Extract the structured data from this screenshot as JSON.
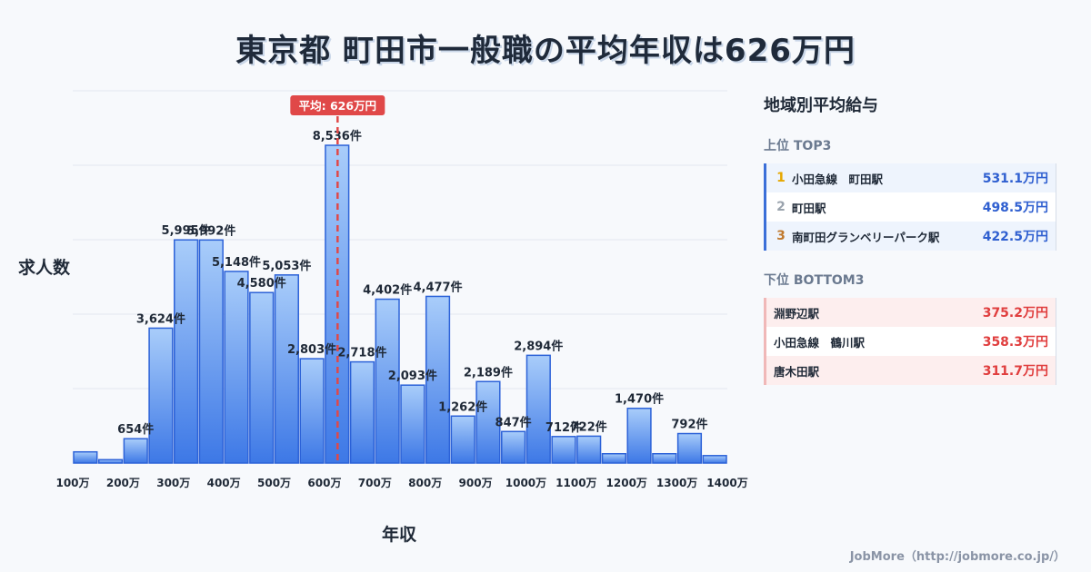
{
  "title": "東京都 町田市一般職の平均年収は626万円",
  "chart_data": {
    "type": "bar",
    "categories": [
      "100万",
      "150万",
      "200万",
      "250万",
      "300万",
      "350万",
      "400万",
      "450万",
      "500万",
      "550万",
      "600万",
      "650万",
      "700万",
      "750万",
      "800万",
      "850万",
      "900万",
      "950万",
      "1000万",
      "1050万",
      "1100万",
      "1150万",
      "1200万",
      "1250万",
      "1300万",
      "1350万"
    ],
    "values": [
      300,
      90,
      654,
      3624,
      5995,
      5992,
      5148,
      4580,
      5053,
      2803,
      8536,
      2718,
      4402,
      2093,
      4477,
      1262,
      2189,
      847,
      2894,
      712,
      722,
      250,
      1470,
      250,
      792,
      200
    ],
    "bar_labels": [
      "",
      "",
      "654件",
      "3,624件",
      "5,995件",
      "5,992件",
      "5,148件",
      "4,580件",
      "5,053件",
      "2,803件",
      "8,536件",
      "2,718件",
      "4,402件",
      "2,093件",
      "4,477件",
      "1,262件",
      "2,189件",
      "847件",
      "2,894件",
      "712件",
      "722件",
      "",
      "1,470件",
      "",
      "792件",
      ""
    ],
    "x_ticks": [
      "100万",
      "200万",
      "300万",
      "400万",
      "500万",
      "600万",
      "700万",
      "800万",
      "900万",
      "1000万",
      "1100万",
      "1200万",
      "1300万",
      "1400万"
    ],
    "xlabel": "年収",
    "ylabel": "求人数",
    "ylim": [
      0,
      10000
    ],
    "grid": true,
    "average": {
      "value": 626,
      "label": "平均: 626万円"
    },
    "colors": {
      "bar_top": "#a9cdfa",
      "bar_bottom": "#3d78e6",
      "bar_stroke": "#2c62d8",
      "average_line": "#e04848",
      "grid": "#e3e8ef"
    }
  },
  "panel": {
    "title": "地域別平均給与",
    "top_title": "上位 TOP3",
    "top": [
      {
        "rank": "1",
        "name": "小田急線　町田駅",
        "value": "531.1万円",
        "rank_color": "#e6a700"
      },
      {
        "rank": "2",
        "name": "町田駅",
        "value": "498.5万円",
        "rank_color": "#9aa3ad"
      },
      {
        "rank": "3",
        "name": "南町田グランベリーパーク駅",
        "value": "422.5万円",
        "rank_color": "#c07a2f"
      }
    ],
    "bottom_title": "下位 BOTTOM3",
    "bottom": [
      {
        "name": "淵野辺駅",
        "value": "375.2万円"
      },
      {
        "name": "小田急線　鶴川駅",
        "value": "358.3万円"
      },
      {
        "name": "唐木田駅",
        "value": "311.7万円"
      }
    ]
  },
  "footer": "JobMore（http://jobmore.co.jp/）"
}
